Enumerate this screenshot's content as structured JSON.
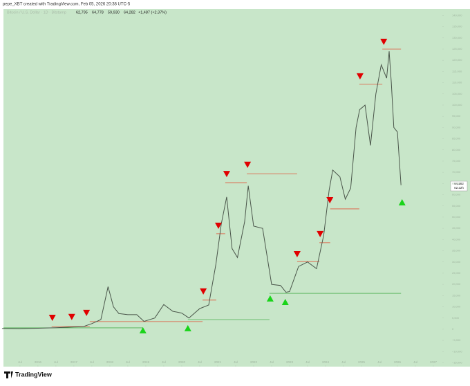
{
  "chart_data": {
    "type": "line",
    "header": "pepe_XBT created with TradingView.com, Feb 05, 2026 20:38 UTC-5",
    "symbol": "Bitcoin / U.S. Dollar · 1D · Bitstamp",
    "ohlc": [
      "62,795",
      "64,778",
      "59,930",
      "64,282"
    ],
    "change": "+1,487 (+2.37%)",
    "price_label": "64,282",
    "countdown": "02:22h",
    "brand": "TradingView",
    "background": "#c8e6c9",
    "color": "#4a554a",
    "xlim": [
      2015.04,
      2027.25
    ],
    "ylim": [
      -16700,
      142900
    ],
    "xticks": [
      {
        "value": 2015.5,
        "label": "Jul"
      },
      2016,
      {
        "value": 2016.5,
        "label": "Jul"
      },
      2017,
      {
        "value": 2017.5,
        "label": "Jul"
      },
      2018,
      {
        "value": 2018.5,
        "label": "Jul"
      },
      2019,
      {
        "value": 2019.5,
        "label": "Jul"
      },
      2020,
      {
        "value": 2020.5,
        "label": "Jul"
      },
      2021,
      {
        "value": 2021.5,
        "label": "Jul"
      },
      2022,
      {
        "value": 2022.5,
        "label": "Jul"
      },
      2023,
      {
        "value": 2023.5,
        "label": "Jul"
      },
      2024,
      {
        "value": 2024.5,
        "label": "Jul"
      },
      2025,
      {
        "value": 2025.5,
        "label": "Jul"
      },
      2026,
      {
        "value": 2026.5,
        "label": "Jul"
      },
      2027
    ],
    "yticks": [
      {
        "value": -15000,
        "label": "−15,000"
      },
      {
        "value": -10000,
        "label": "−10,000"
      },
      {
        "value": -5000,
        "label": "−5,000"
      },
      0,
      {
        "value": 5000,
        "label": "5,000"
      },
      {
        "value": 10000,
        "label": "10,000"
      },
      {
        "value": 15000,
        "label": "15,000"
      },
      {
        "value": 20000,
        "label": "20,000"
      },
      {
        "value": 25000,
        "label": "25,000"
      },
      {
        "value": 30000,
        "label": "30,000"
      },
      {
        "value": 35000,
        "label": "35,000"
      },
      {
        "value": 40000,
        "label": "40,000"
      },
      {
        "value": 45000,
        "label": "45,000"
      },
      {
        "value": 50000,
        "label": "50,000"
      },
      {
        "value": 55000,
        "label": "55,000"
      },
      {
        "value": 60000,
        "label": "60,000"
      },
      {
        "value": 65000,
        "label": "65,000"
      },
      {
        "value": 70000,
        "label": "70,000"
      },
      {
        "value": 75000,
        "label": "75,000"
      },
      {
        "value": 80000,
        "label": "80,000"
      },
      {
        "value": 85000,
        "label": "85,000"
      },
      {
        "value": 90000,
        "label": "90,000"
      },
      {
        "value": 95000,
        "label": "95,000"
      },
      {
        "value": 100000,
        "label": "100,000"
      },
      {
        "value": 105000,
        "label": "105,000"
      },
      {
        "value": 110000,
        "label": "110,000"
      },
      {
        "value": 115000,
        "label": "115,000"
      },
      {
        "value": 120000,
        "label": "120,000"
      },
      {
        "value": 125000,
        "label": "125,000"
      },
      {
        "value": 130000,
        "label": "130,000"
      },
      {
        "value": 135000,
        "label": "135,000"
      },
      {
        "value": 140000,
        "label": "140,000"
      }
    ],
    "x": [
      2015.0,
      2015.5,
      2016.0,
      2016.5,
      2017.0,
      2017.25,
      2017.5,
      2017.75,
      2017.95,
      2018.1,
      2018.25,
      2018.5,
      2018.75,
      2018.95,
      2019.25,
      2019.5,
      2019.75,
      2020.0,
      2020.2,
      2020.5,
      2020.75,
      2020.95,
      2021.1,
      2021.25,
      2021.4,
      2021.55,
      2021.75,
      2021.85,
      2022.0,
      2022.25,
      2022.4,
      2022.5,
      2022.75,
      2022.9,
      2023.0,
      2023.25,
      2023.5,
      2023.75,
      2023.95,
      2024.1,
      2024.2,
      2024.4,
      2024.55,
      2024.7,
      2024.85,
      2024.95,
      2025.1,
      2025.25,
      2025.4,
      2025.55,
      2025.7,
      2025.77,
      2025.83,
      2025.9,
      2026.0,
      2026.1
    ],
    "values": [
      300,
      250,
      430,
      650,
      1000,
      1100,
      2500,
      4300,
      19000,
      10000,
      7000,
      6500,
      6500,
      3500,
      5000,
      11000,
      8000,
      7200,
      5000,
      9200,
      10800,
      29000,
      47000,
      59000,
      36000,
      32000,
      48000,
      64000,
      46000,
      45000,
      30000,
      20000,
      19500,
      16500,
      16800,
      28000,
      30000,
      27000,
      42000,
      62000,
      71000,
      68000,
      58000,
      63000,
      90000,
      98000,
      100000,
      82000,
      105000,
      118000,
      112000,
      124000,
      110000,
      90000,
      88000,
      64282
    ],
    "sell_signals": {
      "color": "#e00000",
      "x": [
        2016.4,
        2016.94,
        2017.35,
        2020.6,
        2021.02,
        2021.25,
        2021.83,
        2023.21,
        2023.85,
        2024.12,
        2024.96,
        2025.62
      ],
      "values": [
        5200,
        5600,
        7400,
        17000,
        46300,
        69400,
        73500,
        33600,
        42600,
        57700,
        113000,
        128400
      ]
    },
    "buy_signals": {
      "color": "#19d419",
      "x": [
        2018.92,
        2020.17,
        2022.46,
        2022.88,
        2026.13
      ],
      "values": [
        -600,
        300,
        13600,
        12000,
        56500
      ]
    },
    "resistance_levels": {
      "color": "#e0563a",
      "x_start": [
        2016.38,
        2017.44,
        2020.58,
        2020.96,
        2021.21,
        2021.81,
        2023.21,
        2023.83,
        2024.13,
        2024.94,
        2025.58
      ],
      "x_end": [
        2017.44,
        2020.58,
        2020.96,
        2021.21,
        2021.81,
        2023.21,
        2023.83,
        2024.13,
        2024.94,
        2025.58,
        2026.1
      ],
      "values": [
        1200,
        3400,
        13000,
        42600,
        65400,
        69400,
        30200,
        38600,
        53700,
        109300,
        125000
      ]
    },
    "support_levels": {
      "color": "#4caf50",
      "x_start": [
        2015.04,
        2020.17,
        2022.44
      ],
      "x_end": [
        2018.92,
        2022.44,
        2026.1
      ],
      "values": [
        600,
        4300,
        16000
      ]
    }
  }
}
